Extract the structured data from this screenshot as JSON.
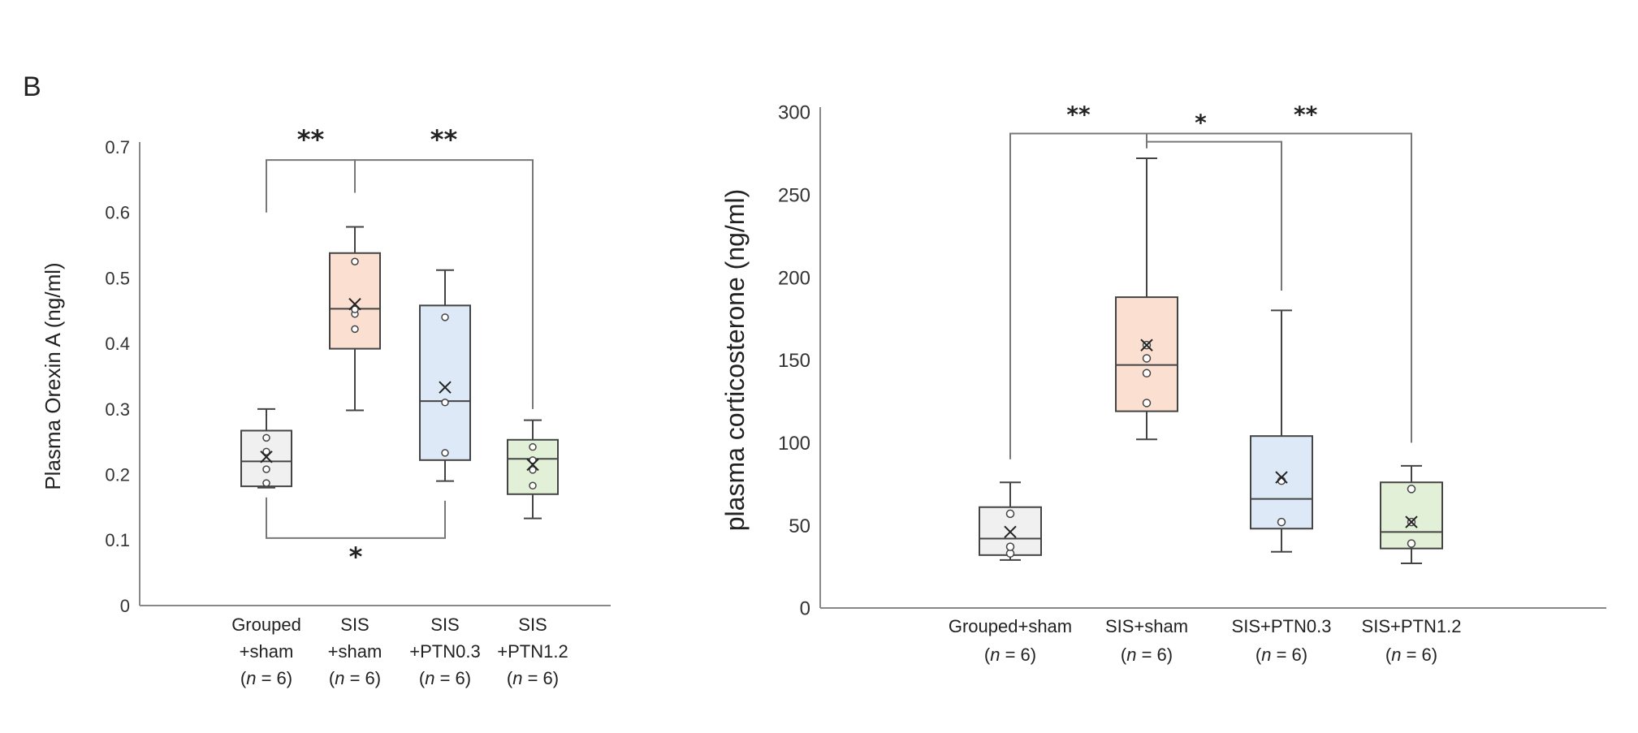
{
  "panel_label": "B",
  "colors": {
    "box_fills": [
      "#f0f0f0",
      "#fbdfd0",
      "#dde9f6",
      "#e3f0d8"
    ],
    "stroke": "#444444",
    "axis": "#888888",
    "bracket": "#777777"
  },
  "chart_data": [
    {
      "type": "box",
      "ylabel": "Plasma Orexin A (ng/ml)",
      "ylim": [
        0,
        0.7
      ],
      "yticks": [
        0,
        0.1,
        0.2,
        0.3,
        0.4,
        0.5,
        0.6,
        0.7
      ],
      "ytick_labels": [
        "0",
        "0.1",
        "0.2",
        "0.3",
        "0.4",
        "0.5",
        "0.6",
        "0.7"
      ],
      "categories": [
        {
          "lines": [
            "Grouped",
            "+sham"
          ],
          "n_prefix": "(",
          "n_italic": "n",
          "n_suffix": " = 6)"
        },
        {
          "lines": [
            "SIS",
            "+sham"
          ],
          "n_prefix": "(",
          "n_italic": "n",
          "n_suffix": " = 6)"
        },
        {
          "lines": [
            "SIS",
            "+PTN0.3"
          ],
          "n_prefix": "(",
          "n_italic": "n",
          "n_suffix": " = 6)"
        },
        {
          "lines": [
            "SIS",
            "+PTN1.2"
          ],
          "n_prefix": "(",
          "n_italic": "n",
          "n_suffix": " = 6)"
        }
      ],
      "boxes": [
        {
          "min": 0.18,
          "q1": 0.182,
          "median": 0.22,
          "q3": 0.267,
          "max": 0.3,
          "mean": 0.227,
          "points": [
            0.187,
            0.208,
            0.235,
            0.256
          ]
        },
        {
          "min": 0.298,
          "q1": 0.392,
          "median": 0.453,
          "q3": 0.538,
          "max": 0.578,
          "mean": 0.46,
          "points": [
            0.422,
            0.445,
            0.452,
            0.525
          ]
        },
        {
          "min": 0.19,
          "q1": 0.222,
          "median": 0.312,
          "q3": 0.458,
          "max": 0.512,
          "mean": 0.333,
          "points": [
            0.233,
            0.31,
            0.44
          ]
        },
        {
          "min": 0.133,
          "q1": 0.17,
          "median": 0.224,
          "q3": 0.253,
          "max": 0.283,
          "mean": 0.215,
          "points": [
            0.183,
            0.207,
            0.222,
            0.242
          ]
        }
      ],
      "significance": [
        {
          "from": 0,
          "to": 1,
          "label": "**",
          "side": "top",
          "level": 0.68,
          "drop_from": 0.6,
          "drop_to": 0.63
        },
        {
          "from": 1,
          "to": 3,
          "label": "**",
          "side": "top",
          "level": 0.68,
          "drop_from": 0.63,
          "drop_to": 0.3
        },
        {
          "from": 0,
          "to": 2,
          "label": "*",
          "side": "bottom",
          "level": 0.103,
          "drop_from": 0.165,
          "drop_to": 0.16
        }
      ]
    },
    {
      "type": "box",
      "ylabel": "plasma corticosterone (ng/ml)",
      "ylim": [
        0,
        300
      ],
      "yticks": [
        0,
        50,
        100,
        150,
        200,
        250,
        300
      ],
      "ytick_labels": [
        "0",
        "50",
        "100",
        "150",
        "200",
        "250",
        "300"
      ],
      "categories": [
        {
          "lines": [
            "Grouped+sham"
          ],
          "n_prefix": "(",
          "n_italic": "n",
          "n_suffix": " = 6)"
        },
        {
          "lines": [
            "SIS+sham"
          ],
          "n_prefix": "(",
          "n_italic": "n",
          "n_suffix": " = 6)"
        },
        {
          "lines": [
            "SIS+PTN0.3"
          ],
          "n_prefix": "(",
          "n_italic": "n",
          "n_suffix": " = 6)"
        },
        {
          "lines": [
            "SIS+PTN1.2"
          ],
          "n_prefix": "(",
          "n_italic": "n",
          "n_suffix": " = 6)"
        }
      ],
      "boxes": [
        {
          "min": 29,
          "q1": 32,
          "median": 42,
          "q3": 61,
          "max": 76,
          "mean": 46,
          "points": [
            33,
            37,
            57
          ]
        },
        {
          "min": 102,
          "q1": 119,
          "median": 147,
          "q3": 188,
          "max": 272,
          "mean": 159,
          "points": [
            124,
            142,
            151,
            159
          ]
        },
        {
          "min": 34,
          "q1": 48,
          "median": 66,
          "q3": 104,
          "max": 180,
          "mean": 79,
          "points": [
            52,
            77
          ]
        },
        {
          "min": 27,
          "q1": 36,
          "median": 46,
          "q3": 76,
          "max": 86,
          "mean": 52,
          "points": [
            39,
            52,
            72
          ]
        }
      ],
      "significance": [
        {
          "from": 0,
          "to": 1,
          "label": "**",
          "side": "top",
          "level": 287,
          "drop_from": 90,
          "drop_to": 278,
          "label_at": 0.5
        },
        {
          "from": 1,
          "to": 3,
          "label": "**",
          "side": "top",
          "level": 287,
          "drop_from": 284,
          "drop_to": 100,
          "label_at": 0.6
        },
        {
          "from": 1,
          "to": 2,
          "label": "*",
          "side": "top",
          "level": 282,
          "drop_from": 282,
          "drop_to": 192,
          "label_at": 0.4
        }
      ]
    }
  ]
}
